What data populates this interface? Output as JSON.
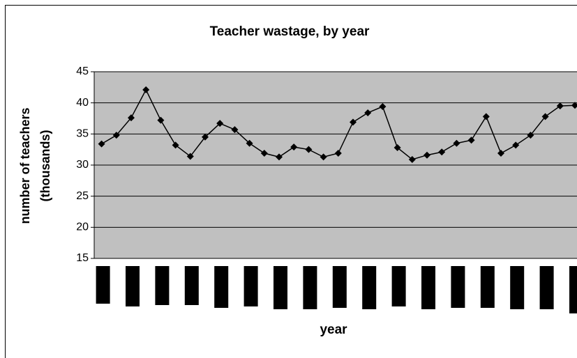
{
  "chart_data": {
    "type": "line",
    "title": "Teacher wastage, by year",
    "y_label": [
      "number of teachers",
      "(thousands)"
    ],
    "x_label": "year",
    "categories": [
      null,
      null,
      null,
      null,
      null,
      null,
      null,
      null,
      null,
      null,
      null,
      null,
      null,
      null,
      null,
      null,
      null,
      null,
      null,
      null,
      null,
      null,
      null,
      null,
      null,
      null,
      null,
      null,
      null,
      null,
      null,
      null,
      null
    ],
    "values": [
      33.4,
      34.8,
      37.6,
      42.1,
      37.2,
      33.2,
      31.4,
      34.5,
      36.7,
      35.7,
      33.5,
      31.9,
      31.3,
      32.9,
      32.5,
      31.3,
      31.9,
      36.9,
      38.4,
      39.4,
      32.8,
      30.9,
      31.6,
      32.1,
      33.5,
      34.0,
      37.8,
      31.9,
      33.2,
      34.8,
      37.8,
      39.5,
      39.6
    ],
    "color": "#000000",
    "plot_background": "#c0c0c0",
    "ylim": [
      15,
      45
    ],
    "yticks": [
      15,
      20,
      25,
      30,
      35,
      40,
      45
    ],
    "grid": true
  }
}
